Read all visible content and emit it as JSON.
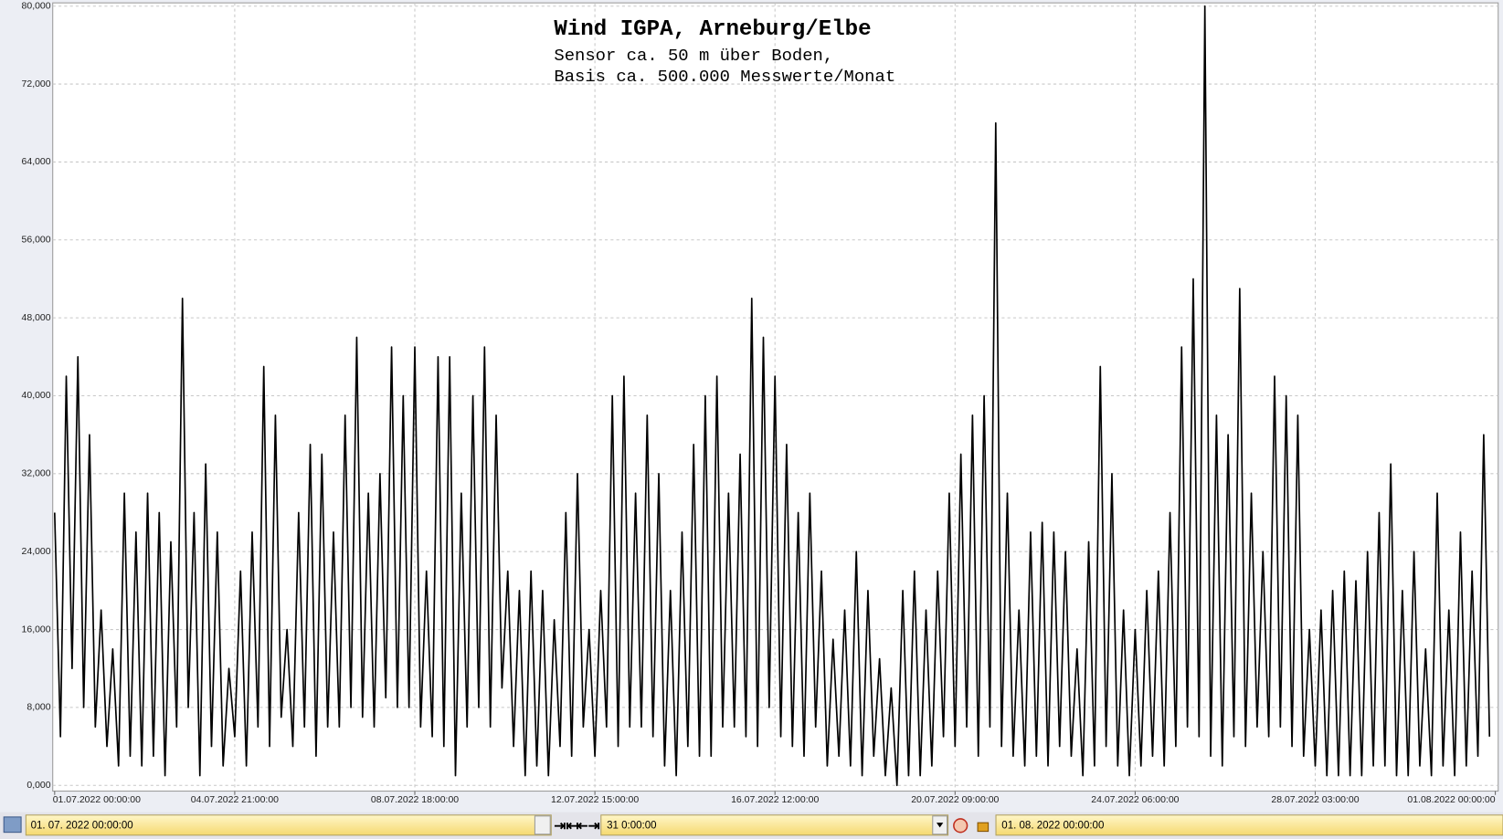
{
  "chart_data": {
    "type": "line",
    "title": "Wind  IGPA, Arneburg/Elbe",
    "subtitle": [
      "Sensor ca. 50 m über Boden,",
      "Basis ca. 500.000 Messwerte/Monat"
    ],
    "color": "#000000",
    "grid": true,
    "xlim": [
      0,
      744
    ],
    "xticks": [
      {
        "value": 0,
        "label": "01.07.2022  00:00:00"
      },
      {
        "value": 93,
        "label": "04.07.2022  21:00:00"
      },
      {
        "value": 186,
        "label": "08.07.2022  18:00:00"
      },
      {
        "value": 279,
        "label": "12.07.2022  15:00:00"
      },
      {
        "value": 372,
        "label": "16.07.2022  12:00:00"
      },
      {
        "value": 465,
        "label": "20.07.2022  09:00:00"
      },
      {
        "value": 558,
        "label": "24.07.2022  06:00:00"
      },
      {
        "value": 651,
        "label": "28.07.2022  03:00:00"
      },
      {
        "value": 744,
        "label": "01.08.2022  00:00:00"
      }
    ],
    "ylim": [
      0,
      80
    ],
    "yticks": [
      {
        "value": 0,
        "label": "0,000"
      },
      {
        "value": 8,
        "label": "8,000"
      },
      {
        "value": 16,
        "label": "16,000"
      },
      {
        "value": 24,
        "label": "24,000"
      },
      {
        "value": 32,
        "label": "32,000"
      },
      {
        "value": 40,
        "label": "40,000"
      },
      {
        "value": 48,
        "label": "48,000"
      },
      {
        "value": 56,
        "label": "56,000"
      },
      {
        "value": 64,
        "label": "64,000"
      },
      {
        "value": 72,
        "label": "72,000"
      },
      {
        "value": 80,
        "label": "80,000"
      }
    ],
    "x": [
      0,
      3,
      6,
      9,
      12,
      15,
      18,
      21,
      24,
      27,
      30,
      33,
      36,
      39,
      42,
      45,
      48,
      51,
      54,
      57,
      60,
      63,
      66,
      69,
      72,
      75,
      78,
      81,
      84,
      87,
      90,
      93,
      96,
      99,
      102,
      105,
      108,
      111,
      114,
      117,
      120,
      123,
      126,
      129,
      132,
      135,
      138,
      141,
      144,
      147,
      150,
      153,
      156,
      159,
      162,
      165,
      168,
      171,
      174,
      177,
      180,
      183,
      186,
      189,
      192,
      195,
      198,
      201,
      204,
      207,
      210,
      213,
      216,
      219,
      222,
      225,
      228,
      231,
      234,
      237,
      240,
      243,
      246,
      249,
      252,
      255,
      258,
      261,
      264,
      267,
      270,
      273,
      276,
      279,
      282,
      285,
      288,
      291,
      294,
      297,
      300,
      303,
      306,
      309,
      312,
      315,
      318,
      321,
      324,
      327,
      330,
      333,
      336,
      339,
      342,
      345,
      348,
      351,
      354,
      357,
      360,
      363,
      366,
      369,
      372,
      375,
      378,
      381,
      384,
      387,
      390,
      393,
      396,
      399,
      402,
      405,
      408,
      411,
      414,
      417,
      420,
      423,
      426,
      429,
      432,
      435,
      438,
      441,
      444,
      447,
      450,
      453,
      456,
      459,
      462,
      465,
      468,
      471,
      474,
      477,
      480,
      483,
      486,
      489,
      492,
      495,
      498,
      501,
      504,
      507,
      510,
      513,
      516,
      519,
      522,
      525,
      528,
      531,
      534,
      537,
      540,
      543,
      546,
      549,
      552,
      555,
      558,
      561,
      564,
      567,
      570,
      573,
      576,
      579,
      582,
      585,
      588,
      591,
      594,
      597,
      600,
      603,
      606,
      609,
      612,
      615,
      618,
      621,
      624,
      627,
      630,
      633,
      636,
      639,
      642,
      645,
      648,
      651,
      654,
      657,
      660,
      663,
      666,
      669,
      672,
      675,
      678,
      681,
      684,
      687,
      690,
      693,
      696,
      699,
      702,
      705,
      708,
      711,
      714,
      717,
      720,
      723,
      726,
      729,
      732,
      735,
      738,
      741
    ],
    "values": [
      28,
      5,
      42,
      12,
      44,
      8,
      36,
      6,
      18,
      4,
      14,
      2,
      30,
      3,
      26,
      2,
      30,
      3,
      28,
      1,
      25,
      6,
      50,
      8,
      28,
      1,
      33,
      4,
      26,
      2,
      12,
      5,
      22,
      2,
      26,
      6,
      43,
      4,
      38,
      7,
      16,
      4,
      28,
      6,
      35,
      3,
      34,
      6,
      26,
      6,
      38,
      8,
      46,
      7,
      30,
      6,
      32,
      9,
      45,
      8,
      40,
      8,
      45,
      6,
      22,
      5,
      44,
      4,
      44,
      1,
      30,
      6,
      40,
      8,
      45,
      6,
      38,
      10,
      22,
      4,
      20,
      1,
      22,
      2,
      20,
      1,
      17,
      4,
      28,
      3,
      32,
      6,
      16,
      3,
      20,
      6,
      40,
      4,
      42,
      6,
      30,
      6,
      38,
      5,
      32,
      2,
      20,
      1,
      26,
      4,
      35,
      3,
      40,
      3,
      42,
      6,
      30,
      6,
      34,
      5,
      50,
      4,
      46,
      8,
      42,
      5,
      35,
      4,
      28,
      3,
      30,
      6,
      22,
      2,
      15,
      3,
      18,
      2,
      24,
      1,
      20,
      3,
      13,
      1,
      10,
      0,
      20,
      1,
      22,
      1,
      18,
      2,
      22,
      5,
      30,
      4,
      34,
      6,
      38,
      3,
      40,
      6,
      68,
      4,
      30,
      3,
      18,
      2,
      26,
      3,
      27,
      2,
      26,
      4,
      24,
      3,
      14,
      1,
      25,
      2,
      43,
      4,
      32,
      2,
      18,
      1,
      16,
      2,
      20,
      3,
      22,
      2,
      28,
      4,
      45,
      6,
      52,
      5,
      80,
      3,
      38,
      2,
      36,
      5,
      51,
      4,
      30,
      6,
      24,
      5,
      42,
      6,
      40,
      4,
      38,
      3,
      16,
      2,
      18,
      1,
      20,
      1,
      22,
      1,
      21,
      1,
      24,
      2,
      28,
      2,
      33,
      1,
      20,
      1,
      24,
      2,
      14,
      1,
      30,
      2,
      18,
      1,
      26,
      2,
      22,
      3,
      36,
      5
    ]
  },
  "toolbar": {
    "start": "01. 07. 2022   00:00:00",
    "duration": "31  0:00:00",
    "end": "01. 08. 2022   00:00:00"
  }
}
